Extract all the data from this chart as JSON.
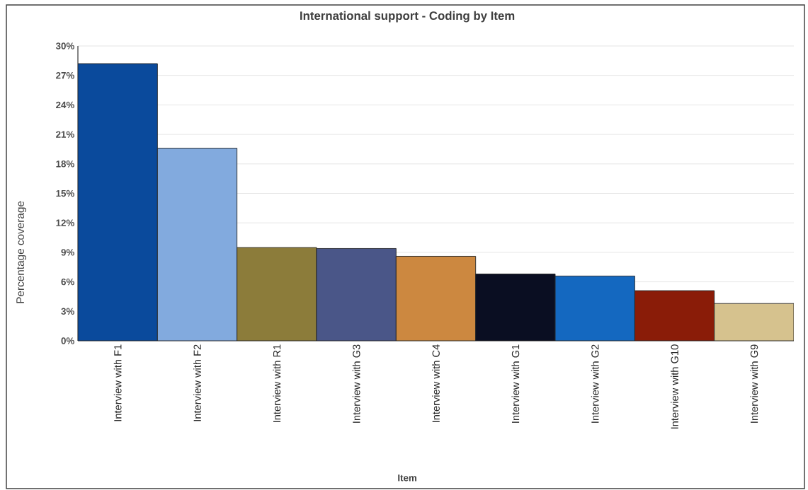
{
  "chart_data": {
    "type": "bar",
    "title": "International support - Coding by Item",
    "xlabel": "Item",
    "ylabel": "Percentage coverage",
    "categories": [
      "Interview with F1",
      "Interview with F2",
      "Interview with R1",
      "Interview with G3",
      "Interview with C4",
      "Interview with G1",
      "Interview with G2",
      "Interview with G10",
      "Interview with G9"
    ],
    "values": [
      28.2,
      19.6,
      9.5,
      9.4,
      8.6,
      6.8,
      6.6,
      5.1,
      3.8
    ],
    "colors": [
      "#0a4a9c",
      "#82aade",
      "#8c7c3a",
      "#4a5688",
      "#cc8840",
      "#0a0e22",
      "#1468c0",
      "#8a1c08",
      "#d6c28e"
    ],
    "ylim": [
      0,
      30
    ],
    "yticks": [
      {
        "value": 0,
        "label": "0%"
      },
      {
        "value": 3,
        "label": "3%"
      },
      {
        "value": 6,
        "label": "6%"
      },
      {
        "value": 9,
        "label": "9%"
      },
      {
        "value": 12,
        "label": "12%"
      },
      {
        "value": 15,
        "label": "15%"
      },
      {
        "value": 18,
        "label": "18%"
      },
      {
        "value": 21,
        "label": "21%"
      },
      {
        "value": 24,
        "label": "24%"
      },
      {
        "value": 27,
        "label": "27%"
      },
      {
        "value": 30,
        "label": "30%"
      }
    ],
    "grid": "y"
  }
}
